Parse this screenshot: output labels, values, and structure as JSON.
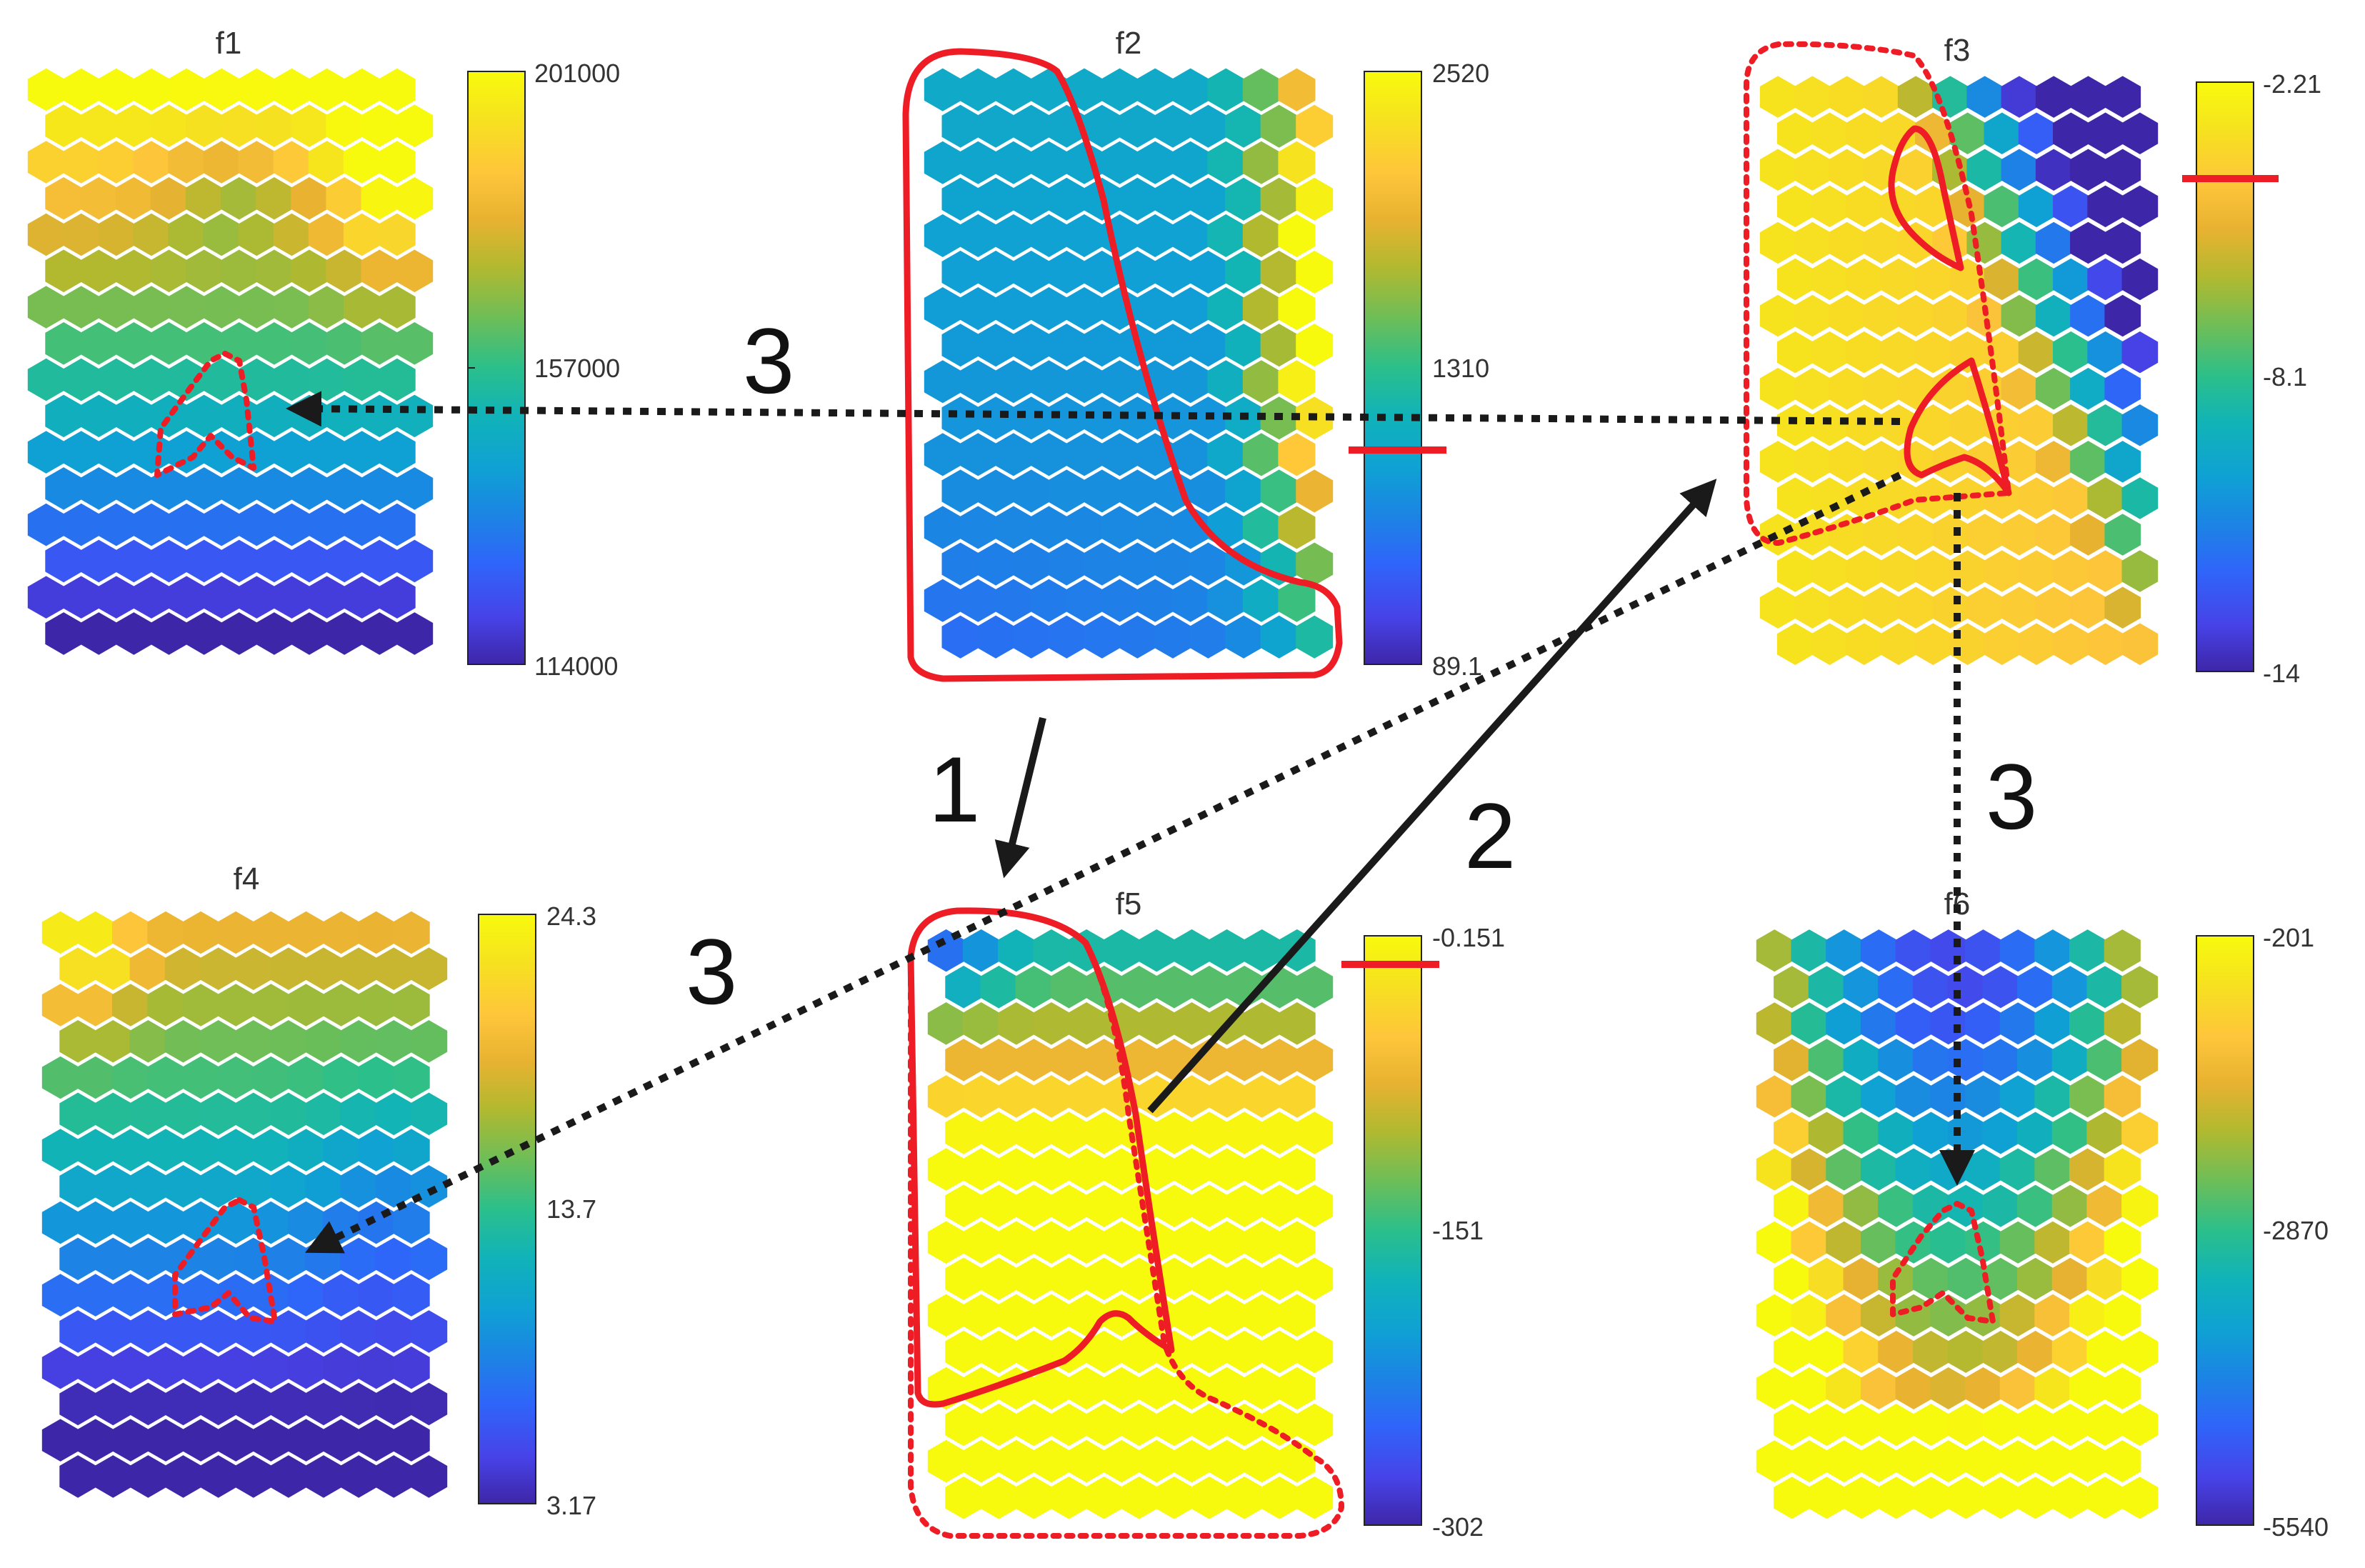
{
  "panels": [
    {
      "id": "f1",
      "title": "f1",
      "colorbar": {
        "max": "201000",
        "mid": "157000",
        "min": "114000"
      },
      "pattern": "f1"
    },
    {
      "id": "f2",
      "title": "f2",
      "colorbar": {
        "max": "2520",
        "mid": "1310",
        "min": "89.1"
      },
      "pattern": "f2"
    },
    {
      "id": "f3",
      "title": "f3",
      "colorbar": {
        "max": "-2.21",
        "mid": "-8.1",
        "min": "-14"
      },
      "pattern": "f3"
    },
    {
      "id": "f4",
      "title": "f4",
      "colorbar": {
        "max": "24.3",
        "mid": "13.7",
        "min": "3.17"
      },
      "pattern": "f4"
    },
    {
      "id": "f5",
      "title": "f5",
      "colorbar": {
        "max": "-0.151",
        "mid": "-151",
        "min": "-302"
      },
      "pattern": "f5"
    },
    {
      "id": "f6",
      "title": "f6",
      "colorbar": {
        "max": "-201",
        "mid": "-2870",
        "min": "-5540"
      },
      "pattern": "f6"
    }
  ],
  "steps": {
    "step1": "1",
    "step2": "2",
    "step3a": "3",
    "step3b": "3",
    "step3c": "3"
  },
  "colormap": [
    "#3e26a8",
    "#4743e8",
    "#2f65fa",
    "#1c84e4",
    "#0fa1d4",
    "#11b3b8",
    "#2bbf8b",
    "#6abe5a",
    "#b2b92f",
    "#e8b231",
    "#fec63a",
    "#f6e21f",
    "#f8fa0d"
  ],
  "colors": {
    "highlight": "#ee1c25",
    "arrow": "#1a1a1a"
  }
}
